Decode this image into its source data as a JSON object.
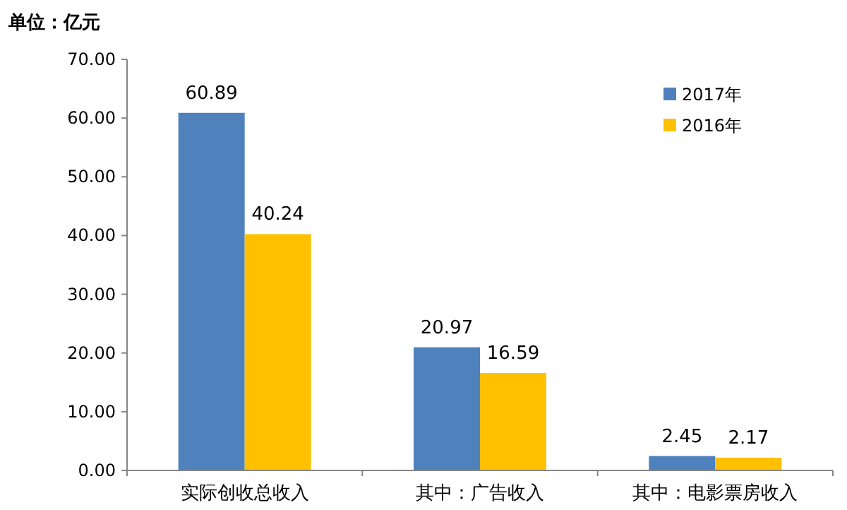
{
  "chart_data": {
    "type": "bar",
    "ylabel": "单位：亿元",
    "categories": [
      "实际创收总收入",
      "其中：广告收入",
      "其中：电影票房收入"
    ],
    "series": [
      {
        "name": "2017年",
        "color": "#4f81bd",
        "values": [
          60.89,
          20.97,
          2.45
        ]
      },
      {
        "name": "2016年",
        "color": "#ffc000",
        "values": [
          40.24,
          16.59,
          2.17
        ]
      }
    ],
    "ylim": [
      0,
      70
    ],
    "yticks": [
      {
        "value": 0,
        "label": "0.00"
      },
      {
        "value": 10,
        "label": "10.00"
      },
      {
        "value": 20,
        "label": "20.00"
      },
      {
        "value": 30,
        "label": "30.00"
      },
      {
        "value": 40,
        "label": "40.00"
      },
      {
        "value": 50,
        "label": "50.00"
      },
      {
        "value": 60,
        "label": "60.00"
      },
      {
        "value": 70,
        "label": "70.00"
      }
    ],
    "data_labels": true,
    "legend": "top right",
    "grid": false
  }
}
